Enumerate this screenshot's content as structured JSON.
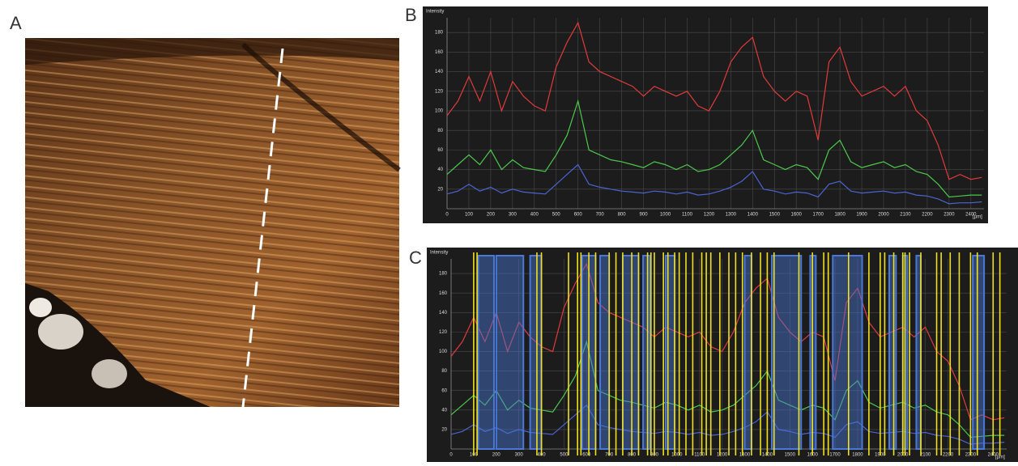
{
  "image_panel": {
    "label": "A"
  },
  "chart_data": [
    {
      "type": "line",
      "label": "B",
      "y_label": "Intensity",
      "x_label": "[µm]",
      "x": [
        0,
        50,
        100,
        150,
        200,
        250,
        300,
        350,
        400,
        450,
        500,
        550,
        600,
        650,
        700,
        750,
        800,
        850,
        900,
        950,
        1000,
        1050,
        1100,
        1150,
        1200,
        1250,
        1300,
        1350,
        1400,
        1450,
        1500,
        1550,
        1600,
        1650,
        1700,
        1750,
        1800,
        1850,
        1900,
        1950,
        2000,
        2050,
        2100,
        2150,
        2200,
        2250,
        2300,
        2350,
        2400,
        2450
      ],
      "xlim": [
        0,
        2460
      ],
      "ylim": [
        0,
        195
      ],
      "xticks": [
        0,
        100,
        200,
        300,
        400,
        500,
        600,
        700,
        800,
        900,
        1000,
        1100,
        1200,
        1300,
        1400,
        1500,
        1600,
        1700,
        1800,
        1900,
        2000,
        2100,
        2200,
        2300,
        2400
      ],
      "yticks": [
        20,
        40,
        60,
        80,
        100,
        120,
        140,
        160,
        180
      ],
      "grid": true,
      "series": [
        {
          "color": "#e23a3a",
          "values": [
            95,
            110,
            135,
            110,
            140,
            100,
            130,
            115,
            105,
            100,
            145,
            170,
            190,
            150,
            140,
            135,
            130,
            125,
            115,
            125,
            120,
            115,
            120,
            105,
            100,
            120,
            150,
            165,
            175,
            135,
            120,
            110,
            120,
            115,
            70,
            150,
            165,
            130,
            115,
            120,
            125,
            115,
            125,
            100,
            90,
            65,
            30,
            35,
            30,
            32
          ]
        },
        {
          "color": "#4cc84c",
          "values": [
            35,
            45,
            55,
            45,
            60,
            40,
            50,
            42,
            40,
            38,
            55,
            75,
            110,
            60,
            55,
            50,
            48,
            45,
            42,
            48,
            45,
            40,
            45,
            38,
            40,
            45,
            55,
            65,
            80,
            50,
            45,
            40,
            45,
            42,
            30,
            60,
            70,
            48,
            42,
            45,
            48,
            42,
            45,
            38,
            35,
            25,
            12,
            13,
            14,
            14
          ]
        },
        {
          "color": "#4a64d4",
          "values": [
            15,
            18,
            25,
            18,
            22,
            16,
            20,
            17,
            16,
            15,
            25,
            35,
            45,
            25,
            22,
            20,
            18,
            17,
            16,
            18,
            17,
            15,
            17,
            14,
            15,
            18,
            22,
            28,
            38,
            20,
            18,
            15,
            17,
            16,
            12,
            25,
            28,
            18,
            16,
            17,
            18,
            16,
            17,
            14,
            13,
            10,
            5,
            6,
            6,
            7
          ]
        }
      ]
    },
    {
      "type": "line",
      "label": "C",
      "y_label": "Intensity",
      "x_label": "[µm]",
      "x": [
        0,
        50,
        100,
        150,
        200,
        250,
        300,
        350,
        400,
        450,
        500,
        550,
        600,
        650,
        700,
        750,
        800,
        850,
        900,
        950,
        1000,
        1050,
        1100,
        1150,
        1200,
        1250,
        1300,
        1350,
        1400,
        1450,
        1500,
        1550,
        1600,
        1650,
        1700,
        1750,
        1800,
        1850,
        1900,
        1950,
        2000,
        2050,
        2100,
        2150,
        2200,
        2250,
        2300,
        2350,
        2400,
        2450
      ],
      "xlim": [
        0,
        2460
      ],
      "ylim": [
        0,
        195
      ],
      "xticks": [
        0,
        100,
        200,
        300,
        400,
        500,
        600,
        700,
        800,
        900,
        1000,
        1100,
        1200,
        1300,
        1400,
        1500,
        1600,
        1700,
        1800,
        1900,
        2000,
        2100,
        2200,
        2300,
        2400
      ],
      "yticks": [
        20,
        40,
        60,
        80,
        100,
        120,
        140,
        160,
        180
      ],
      "grid": true,
      "series": [
        {
          "color": "#e23a3a",
          "values": [
            95,
            110,
            135,
            110,
            140,
            100,
            130,
            115,
            105,
            100,
            145,
            170,
            190,
            150,
            140,
            135,
            130,
            125,
            115,
            125,
            120,
            115,
            120,
            105,
            100,
            120,
            150,
            165,
            175,
            135,
            120,
            110,
            120,
            115,
            70,
            150,
            165,
            130,
            115,
            120,
            125,
            115,
            125,
            100,
            90,
            65,
            30,
            35,
            30,
            32
          ]
        },
        {
          "color": "#4cc84c",
          "values": [
            35,
            45,
            55,
            45,
            60,
            40,
            50,
            42,
            40,
            38,
            55,
            75,
            110,
            60,
            55,
            50,
            48,
            45,
            42,
            48,
            45,
            40,
            45,
            38,
            40,
            45,
            55,
            65,
            80,
            50,
            45,
            40,
            45,
            42,
            30,
            60,
            70,
            48,
            42,
            45,
            48,
            42,
            45,
            38,
            35,
            25,
            12,
            13,
            14,
            14
          ]
        },
        {
          "color": "#4a64d4",
          "values": [
            15,
            18,
            25,
            18,
            22,
            16,
            20,
            17,
            16,
            15,
            25,
            35,
            45,
            25,
            22,
            20,
            18,
            17,
            16,
            18,
            17,
            15,
            17,
            14,
            15,
            18,
            22,
            28,
            38,
            20,
            18,
            15,
            17,
            16,
            12,
            25,
            28,
            18,
            16,
            17,
            18,
            16,
            17,
            14,
            13,
            10,
            5,
            6,
            6,
            7
          ]
        }
      ],
      "band_color": "#4a78d8",
      "bands": [
        [
          120,
          190
        ],
        [
          200,
          320
        ],
        [
          350,
          400
        ],
        [
          580,
          640
        ],
        [
          660,
          700
        ],
        [
          760,
          830
        ],
        [
          850,
          880
        ],
        [
          950,
          990
        ],
        [
          1300,
          1330
        ],
        [
          1420,
          1550
        ],
        [
          1590,
          1615
        ],
        [
          1690,
          1820
        ],
        [
          1940,
          1970
        ],
        [
          2000,
          2020
        ],
        [
          2060,
          2080
        ],
        [
          2310,
          2360
        ]
      ],
      "marker_color": "#f0e020",
      "markers": [
        100,
        115,
        380,
        400,
        520,
        560,
        575,
        610,
        640,
        700,
        730,
        760,
        800,
        830,
        870,
        885,
        900,
        940,
        960,
        990,
        1010,
        1040,
        1070,
        1110,
        1130,
        1150,
        1190,
        1230,
        1260,
        1290,
        1330,
        1370,
        1400,
        1430,
        1540,
        1600,
        1650,
        1670,
        1760,
        1850,
        1900,
        1920,
        1960,
        2000,
        2010,
        2030,
        2080,
        2150,
        2170,
        2210,
        2250,
        2300,
        2330,
        2400,
        2430
      ]
    }
  ]
}
